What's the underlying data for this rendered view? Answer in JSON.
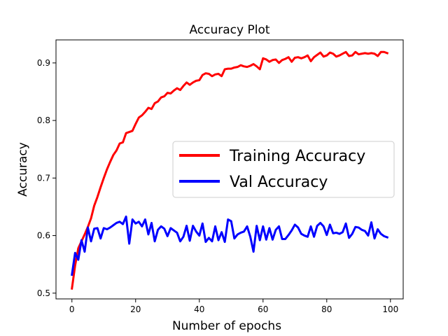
{
  "chart_data": {
    "type": "line",
    "title": "Accuracy Plot",
    "xlabel": "Number of epochs",
    "ylabel": "Accuracy",
    "xlim": [
      -5,
      104
    ],
    "ylim": [
      0.49,
      0.94
    ],
    "xticks": [
      0,
      20,
      40,
      60,
      80,
      100
    ],
    "yticks": [
      0.5,
      0.6,
      0.7,
      0.8,
      0.9
    ],
    "xtick_labels": [
      "0",
      "20",
      "40",
      "60",
      "80",
      "100"
    ],
    "ytick_labels": [
      "0.5",
      "0.6",
      "0.7",
      "0.8",
      "0.9"
    ],
    "grid": false,
    "legend_position": "center-right",
    "x": [
      0,
      1,
      2,
      3,
      4,
      5,
      6,
      7,
      8,
      9,
      10,
      11,
      12,
      13,
      14,
      15,
      16,
      17,
      18,
      19,
      20,
      21,
      22,
      23,
      24,
      25,
      26,
      27,
      28,
      29,
      30,
      31,
      32,
      33,
      34,
      35,
      36,
      37,
      38,
      39,
      40,
      41,
      42,
      43,
      44,
      45,
      46,
      47,
      48,
      49,
      50,
      51,
      52,
      53,
      54,
      55,
      56,
      57,
      58,
      59,
      60,
      61,
      62,
      63,
      64,
      65,
      66,
      67,
      68,
      69,
      70,
      71,
      72,
      73,
      74,
      75,
      76,
      77,
      78,
      79,
      80,
      81,
      82,
      83,
      84,
      85,
      86,
      87,
      88,
      89,
      90,
      91,
      92,
      93,
      94,
      95,
      96,
      97,
      98,
      99
    ],
    "series": [
      {
        "name": "Training Accuracy",
        "color": "#ff0000",
        "values": [
          0.508,
          0.548,
          0.578,
          0.59,
          0.602,
          0.615,
          0.63,
          0.652,
          0.667,
          0.684,
          0.7,
          0.715,
          0.728,
          0.74,
          0.748,
          0.76,
          0.762,
          0.778,
          0.78,
          0.782,
          0.794,
          0.805,
          0.809,
          0.815,
          0.822,
          0.82,
          0.83,
          0.833,
          0.84,
          0.842,
          0.848,
          0.847,
          0.852,
          0.856,
          0.853,
          0.86,
          0.866,
          0.862,
          0.866,
          0.869,
          0.87,
          0.879,
          0.882,
          0.881,
          0.877,
          0.88,
          0.881,
          0.877,
          0.889,
          0.89,
          0.89,
          0.892,
          0.893,
          0.896,
          0.894,
          0.893,
          0.895,
          0.898,
          0.894,
          0.889,
          0.908,
          0.906,
          0.902,
          0.905,
          0.906,
          0.9,
          0.905,
          0.907,
          0.91,
          0.902,
          0.909,
          0.91,
          0.908,
          0.91,
          0.913,
          0.903,
          0.91,
          0.914,
          0.918,
          0.911,
          0.913,
          0.918,
          0.916,
          0.911,
          0.913,
          0.916,
          0.919,
          0.912,
          0.913,
          0.919,
          0.915,
          0.916,
          0.917,
          0.916,
          0.917,
          0.916,
          0.912,
          0.919,
          0.919,
          0.917
        ]
      },
      {
        "name": "Val Accuracy",
        "color": "#0000ff",
        "values": [
          0.532,
          0.57,
          0.558,
          0.592,
          0.572,
          0.614,
          0.59,
          0.612,
          0.613,
          0.595,
          0.613,
          0.611,
          0.614,
          0.618,
          0.622,
          0.624,
          0.62,
          0.633,
          0.586,
          0.628,
          0.621,
          0.624,
          0.616,
          0.628,
          0.602,
          0.622,
          0.59,
          0.61,
          0.616,
          0.612,
          0.599,
          0.613,
          0.609,
          0.605,
          0.59,
          0.598,
          0.617,
          0.591,
          0.617,
          0.607,
          0.6,
          0.621,
          0.589,
          0.596,
          0.59,
          0.616,
          0.592,
          0.606,
          0.589,
          0.628,
          0.625,
          0.595,
          0.602,
          0.605,
          0.607,
          0.616,
          0.598,
          0.572,
          0.617,
          0.592,
          0.616,
          0.593,
          0.613,
          0.593,
          0.61,
          0.616,
          0.594,
          0.594,
          0.601,
          0.609,
          0.619,
          0.614,
          0.603,
          0.6,
          0.598,
          0.616,
          0.598,
          0.617,
          0.622,
          0.616,
          0.601,
          0.619,
          0.604,
          0.605,
          0.603,
          0.606,
          0.621,
          0.596,
          0.603,
          0.615,
          0.614,
          0.61,
          0.608,
          0.6,
          0.623,
          0.595,
          0.611,
          0.603,
          0.599,
          0.597
        ]
      }
    ]
  }
}
